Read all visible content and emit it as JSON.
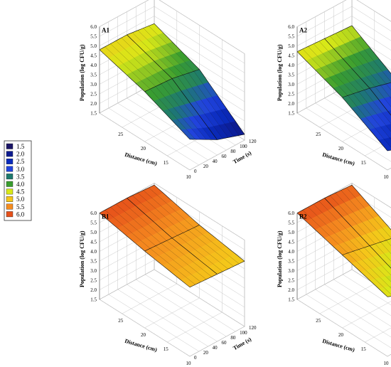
{
  "chart_data": {
    "type": "surface3d",
    "legend": {
      "values": [
        "1.5",
        "2.0",
        "2.5",
        "3.0",
        "3.5",
        "4.0",
        "4.5",
        "5.0",
        "5.5",
        "6.0"
      ],
      "colors": [
        "#1a1466",
        "#0d1b8f",
        "#0a2bbd",
        "#2244dd",
        "#1e7a6e",
        "#3a9e2f",
        "#d8e818",
        "#f5c61a",
        "#f58c1f",
        "#e6501a"
      ]
    },
    "zlabel": "Population (log CFU/g)",
    "xlabel": "Distance (cm)",
    "ylabel": "Time (s)",
    "z_ticks": [
      "1.5",
      "2.0",
      "2.5",
      "3.0",
      "3.5",
      "4.0",
      "4.5",
      "5.0",
      "5.5",
      "6.0"
    ],
    "x_ticks": [
      "25",
      "20",
      "15",
      "10"
    ],
    "y_ticks": [
      "0",
      "20",
      "40",
      "60",
      "80",
      "100",
      "120"
    ],
    "zlim": [
      1.5,
      6.0
    ],
    "xlim": [
      10,
      30
    ],
    "ylim": [
      0,
      120
    ],
    "distance": [
      30,
      20,
      10
    ],
    "time": [
      0,
      60,
      120
    ],
    "panels": [
      {
        "label": "A1",
        "z": [
          [
            4.8,
            4.1,
            3.1
          ],
          [
            4.8,
            4.0,
            2.3
          ],
          [
            4.6,
            3.7,
            1.8
          ]
        ]
      },
      {
        "label": "A2",
        "z": [
          [
            4.7,
            3.8,
            2.5
          ],
          [
            4.6,
            3.5,
            2.0
          ],
          [
            4.5,
            3.1,
            1.6
          ]
        ]
      },
      {
        "label": "B1",
        "z": [
          [
            6.0,
            5.5,
            5.1
          ],
          [
            6.0,
            5.4,
            5.0
          ],
          [
            5.9,
            5.3,
            4.9
          ]
        ]
      },
      {
        "label": "B2",
        "z": [
          [
            6.0,
            5.3,
            4.6
          ],
          [
            6.0,
            5.0,
            4.0
          ],
          [
            5.9,
            4.7,
            3.3
          ]
        ]
      }
    ]
  }
}
